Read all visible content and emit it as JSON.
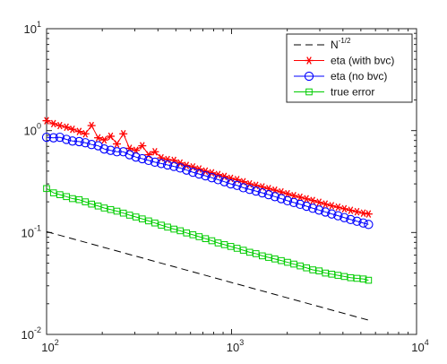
{
  "chart_data": {
    "type": "line",
    "xscale": "log",
    "yscale": "log",
    "xlim": [
      100,
      10000
    ],
    "ylim": [
      0.01,
      10
    ],
    "grid": false,
    "legend_placement": "top-right",
    "x_ticks": [
      {
        "base": "10",
        "exp": "2",
        "value": 100
      },
      {
        "base": "10",
        "exp": "3",
        "value": 1000
      },
      {
        "base": "10",
        "exp": "4",
        "value": 10000
      }
    ],
    "y_ticks": [
      {
        "base": "10",
        "exp": "-2",
        "value": 0.01
      },
      {
        "base": "10",
        "exp": "-1",
        "value": 0.1
      },
      {
        "base": "10",
        "exp": "0",
        "value": 1
      },
      {
        "base": "10",
        "exp": "1",
        "value": 10
      }
    ],
    "series": [
      {
        "name_base": "N",
        "name_exp": "-1/2",
        "color": "#000000",
        "style": "dashed",
        "marker": "none",
        "x": [
          100,
          5500
        ],
        "y": [
          0.102,
          0.0138
        ]
      },
      {
        "name": "eta (with bvc)",
        "color": "#ff0000",
        "style": "solid",
        "marker": "asterisk",
        "x": [
          100,
          109,
          118,
          128,
          138,
          150,
          162,
          175,
          190,
          205,
          222,
          240,
          260,
          281,
          304,
          329,
          356,
          385,
          417,
          451,
          488,
          528,
          571,
          618,
          668,
          723,
          782,
          846,
          915,
          990,
          1071,
          1158,
          1253,
          1355,
          1466,
          1586,
          1715,
          1856,
          2007,
          2171,
          2349,
          2541,
          2748,
          2973,
          3216,
          3479,
          3763,
          4071,
          4403,
          4763,
          5152,
          5500
        ],
        "y": [
          1.25,
          1.17,
          1.12,
          1.08,
          1.03,
          0.98,
          0.93,
          1.12,
          0.85,
          0.81,
          0.88,
          0.74,
          0.93,
          0.67,
          0.64,
          0.71,
          0.58,
          0.62,
          0.54,
          0.52,
          0.51,
          0.48,
          0.455,
          0.44,
          0.42,
          0.4,
          0.385,
          0.37,
          0.355,
          0.34,
          0.33,
          0.315,
          0.3,
          0.29,
          0.28,
          0.27,
          0.26,
          0.25,
          0.24,
          0.23,
          0.222,
          0.214,
          0.206,
          0.198,
          0.19,
          0.183,
          0.177,
          0.171,
          0.165,
          0.16,
          0.155,
          0.152
        ]
      },
      {
        "name": "eta (no bvc)",
        "color": "#0000ff",
        "style": "solid",
        "marker": "circle",
        "x": [
          100,
          109,
          118,
          128,
          138,
          150,
          162,
          175,
          190,
          205,
          222,
          240,
          260,
          281,
          304,
          329,
          356,
          385,
          417,
          451,
          488,
          528,
          571,
          618,
          668,
          723,
          782,
          846,
          915,
          990,
          1071,
          1158,
          1253,
          1355,
          1466,
          1586,
          1715,
          1856,
          2007,
          2171,
          2349,
          2541,
          2748,
          2973,
          3216,
          3479,
          3763,
          4071,
          4403,
          4763,
          5152,
          5500
        ],
        "y": [
          0.86,
          0.85,
          0.86,
          0.82,
          0.79,
          0.78,
          0.76,
          0.73,
          0.71,
          0.66,
          0.64,
          0.62,
          0.62,
          0.58,
          0.55,
          0.53,
          0.51,
          0.49,
          0.475,
          0.46,
          0.445,
          0.43,
          0.41,
          0.39,
          0.375,
          0.36,
          0.345,
          0.33,
          0.315,
          0.3,
          0.29,
          0.275,
          0.265,
          0.255,
          0.245,
          0.235,
          0.225,
          0.215,
          0.205,
          0.197,
          0.189,
          0.181,
          0.173,
          0.166,
          0.159,
          0.152,
          0.146,
          0.14,
          0.134,
          0.129,
          0.124,
          0.12
        ]
      },
      {
        "name": "true error",
        "color": "#00cc00",
        "style": "solid",
        "marker": "square",
        "x": [
          100,
          109,
          118,
          128,
          138,
          150,
          162,
          175,
          190,
          205,
          222,
          240,
          260,
          281,
          304,
          329,
          356,
          385,
          417,
          451,
          488,
          528,
          571,
          618,
          668,
          723,
          782,
          846,
          915,
          990,
          1071,
          1158,
          1253,
          1355,
          1466,
          1586,
          1715,
          1856,
          2007,
          2171,
          2349,
          2541,
          2748,
          2973,
          3216,
          3479,
          3763,
          4071,
          4403,
          4763,
          5152,
          5500
        ],
        "y": [
          0.27,
          0.245,
          0.235,
          0.225,
          0.215,
          0.21,
          0.2,
          0.19,
          0.182,
          0.174,
          0.168,
          0.162,
          0.155,
          0.148,
          0.142,
          0.136,
          0.13,
          0.124,
          0.118,
          0.113,
          0.108,
          0.104,
          0.099,
          0.095,
          0.091,
          0.087,
          0.083,
          0.079,
          0.076,
          0.073,
          0.07,
          0.067,
          0.064,
          0.062,
          0.059,
          0.057,
          0.055,
          0.053,
          0.051,
          0.049,
          0.047,
          0.045,
          0.043,
          0.042,
          0.04,
          0.039,
          0.038,
          0.037,
          0.036,
          0.0355,
          0.035,
          0.034
        ]
      }
    ]
  }
}
